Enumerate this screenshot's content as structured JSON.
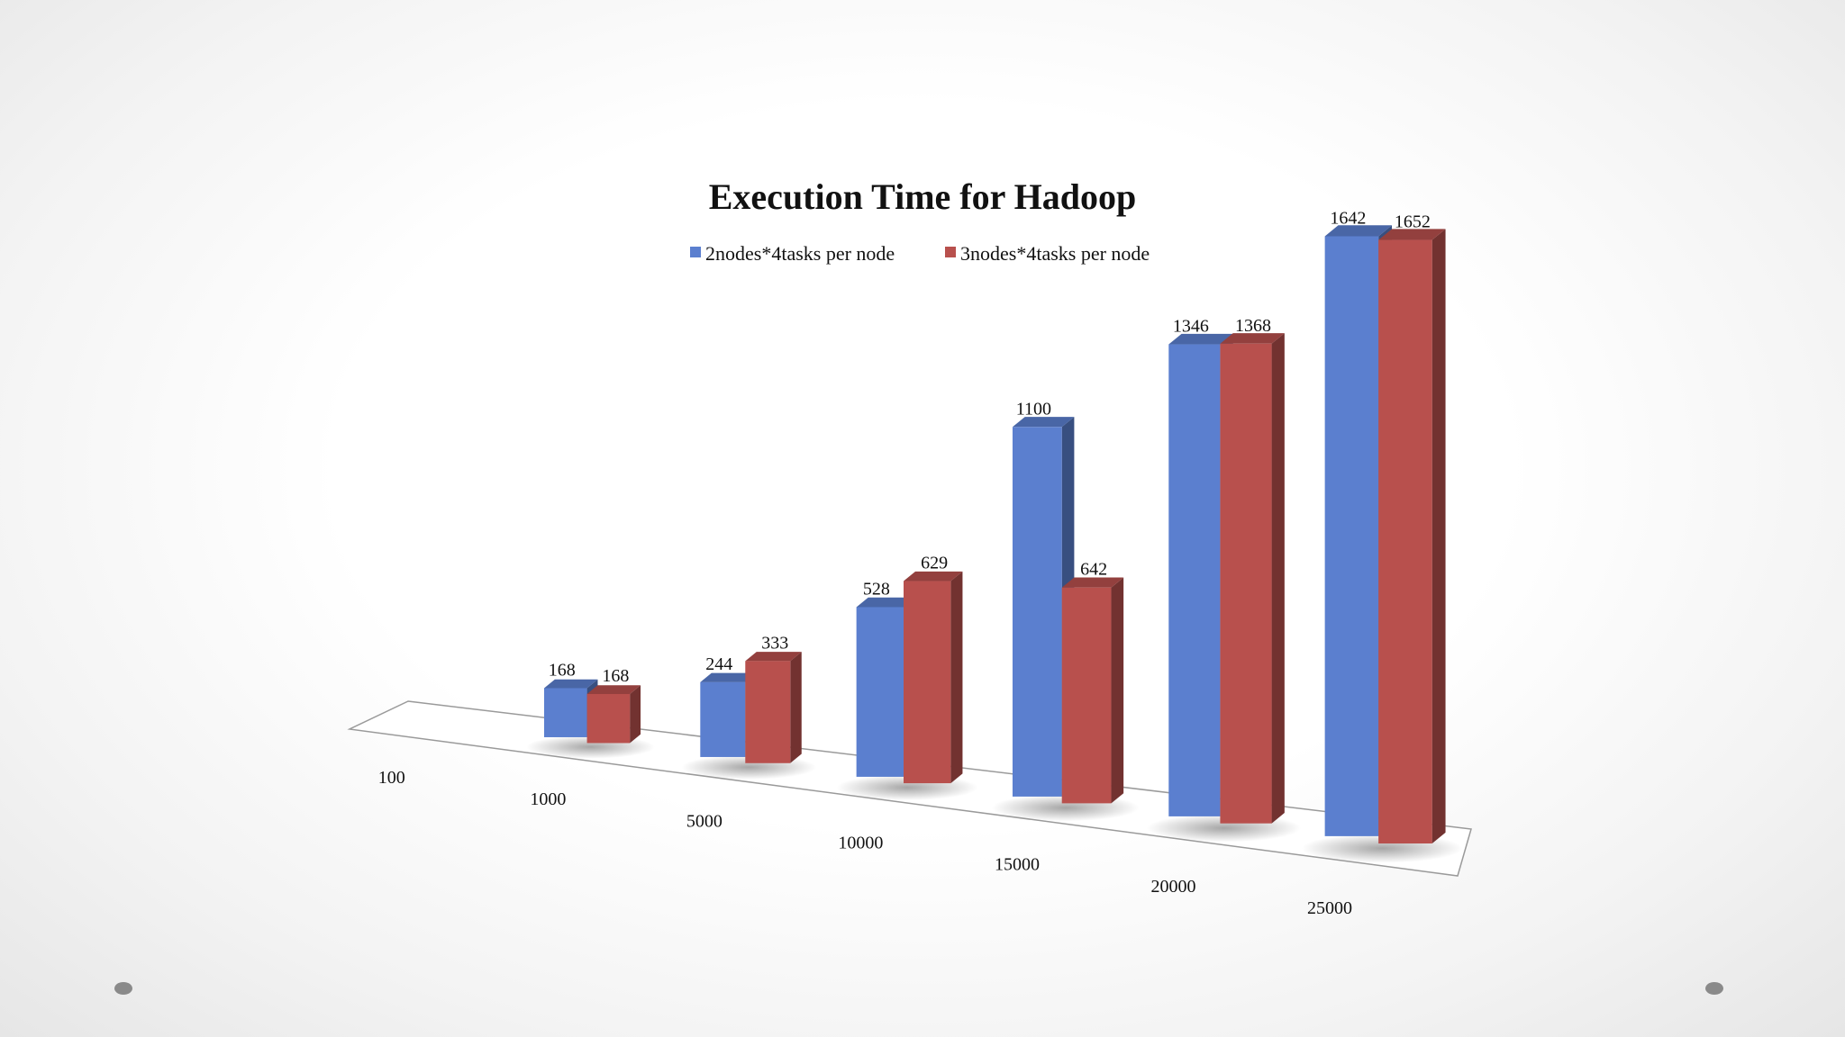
{
  "chart_data": {
    "type": "bar",
    "style": "3d-clustered-column",
    "title": "Execution Time for Hadoop",
    "categories": [
      "100",
      "1000",
      "5000",
      "10000",
      "15000",
      "20000",
      "25000"
    ],
    "series": [
      {
        "name": "2nodes*4tasks per node",
        "values": [
          null,
          168,
          244,
          528,
          1100,
          1346,
          1642
        ],
        "data_labels": [
          "",
          "168",
          "244",
          "528",
          "1100",
          "1346",
          "1642"
        ]
      },
      {
        "name": "3nodes*4tasks per node",
        "values": [
          null,
          168,
          333,
          629,
          642,
          1368,
          1652
        ],
        "data_labels": [
          "",
          "168",
          "333",
          "629",
          "642",
          "1368",
          "1652"
        ]
      }
    ],
    "legend_position": "top",
    "grid": false,
    "y_axis_visible": false
  },
  "colors": {
    "series_1": "#5b7fcf",
    "series_2": "#b8504d",
    "floor_stroke": "#9a9a9a",
    "text": "#111111",
    "slide_dot": "#8a8a8a"
  }
}
